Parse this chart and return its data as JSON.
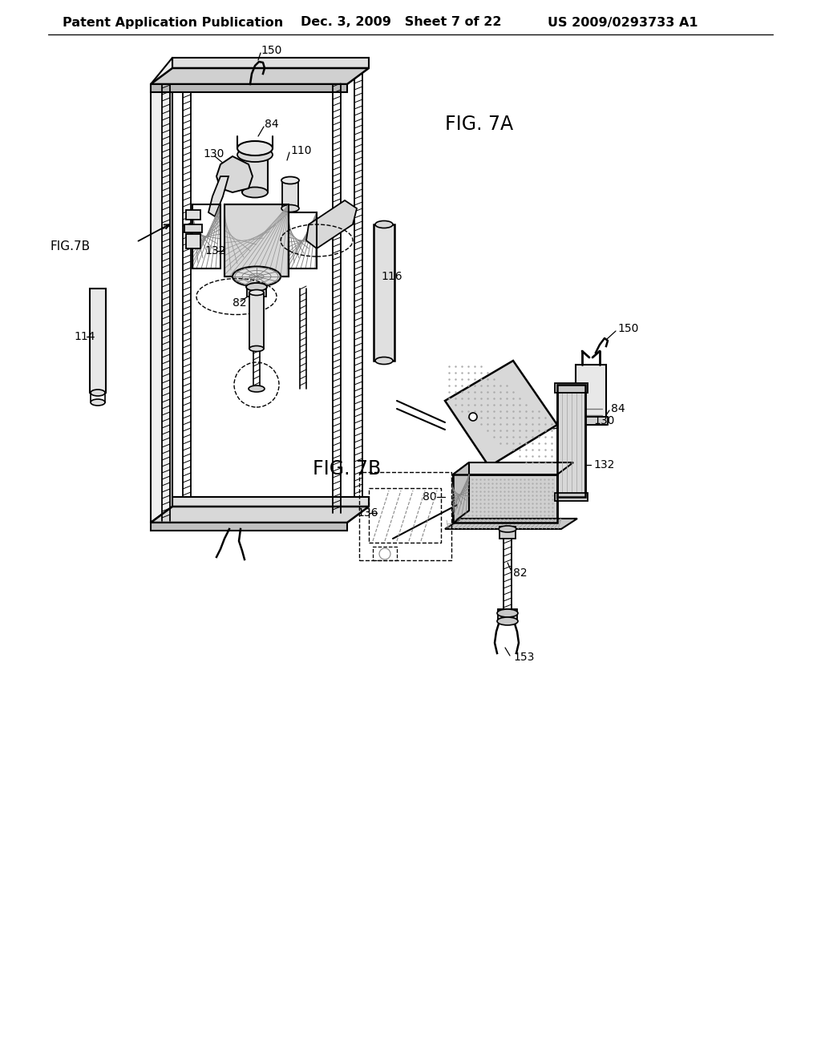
{
  "background_color": "#ffffff",
  "header_left": "Patent Application Publication",
  "header_center": "Dec. 3, 2009   Sheet 7 of 22",
  "header_right": "US 2009/0293733 A1",
  "fig7a_label": "FIG. 7A",
  "fig7b_label": "FIG. 7B",
  "fig7b_arrow_label": "FIG.7B",
  "line_color": "#000000",
  "gray_light": "#e8e8e8",
  "gray_mid": "#c8c8c8",
  "gray_dark": "#999999"
}
